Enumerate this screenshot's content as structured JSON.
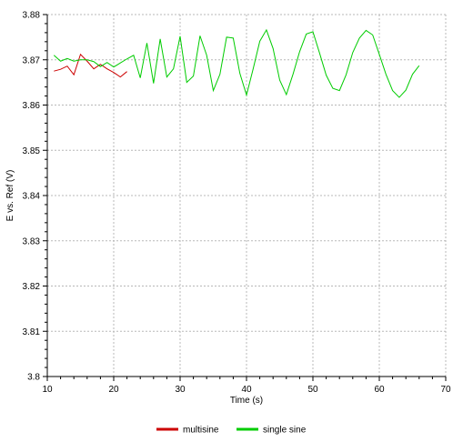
{
  "chart_data": {
    "type": "line",
    "title": "",
    "xlabel": "Time (s)",
    "ylabel": "E vs. Ref (V)",
    "xlim": [
      10,
      70
    ],
    "ylim": [
      3.8,
      3.88
    ],
    "xticks": [
      10,
      20,
      30,
      40,
      50,
      60,
      70
    ],
    "yticks": [
      3.8,
      3.81,
      3.82,
      3.83,
      3.84,
      3.85,
      3.86,
      3.87,
      3.88
    ],
    "xtick_labels": [
      "10",
      "20",
      "30",
      "40",
      "50",
      "60",
      "70"
    ],
    "ytick_labels": [
      "3.8",
      "3.81",
      "3.82",
      "3.83",
      "3.84",
      "3.85",
      "3.86",
      "3.87",
      "3.88"
    ],
    "grid": true,
    "legend_position": "bottom-center",
    "series": [
      {
        "name": "multisine",
        "color": "#cc0000",
        "x": [
          11,
          12,
          13,
          14,
          15,
          16,
          17,
          18,
          19,
          20,
          21,
          22
        ],
        "y": [
          3.8675,
          3.8679,
          3.8686,
          3.8667,
          3.8712,
          3.8697,
          3.868,
          3.869,
          3.868,
          3.8672,
          3.8662,
          3.8674
        ]
      },
      {
        "name": "single sine",
        "color": "#00cc00",
        "x": [
          11,
          12,
          13,
          14,
          15,
          16,
          17,
          18,
          19,
          20,
          21,
          22,
          23,
          24,
          25,
          26,
          27,
          28,
          29,
          30,
          31,
          32,
          33,
          34,
          35,
          36,
          37,
          38,
          39,
          40,
          41,
          42,
          43,
          44,
          45,
          46,
          47,
          48,
          49,
          50,
          51,
          52,
          53,
          54,
          55,
          56,
          57,
          58,
          59,
          60,
          61,
          62,
          63,
          64,
          65,
          66
        ],
        "y": [
          3.871,
          3.8697,
          3.8703,
          3.8697,
          3.87,
          3.87,
          3.8696,
          3.8685,
          3.8694,
          3.8684,
          3.8693,
          3.8702,
          3.871,
          3.866,
          3.8737,
          3.8648,
          3.8746,
          3.8662,
          3.868,
          3.8752,
          3.865,
          3.8664,
          3.8753,
          3.871,
          3.8632,
          3.8668,
          3.875,
          3.8748,
          3.867,
          3.8622,
          3.868,
          3.8741,
          3.8766,
          3.8725,
          3.8655,
          3.8623,
          3.8668,
          3.8718,
          3.8757,
          3.8762,
          3.8715,
          3.8666,
          3.8637,
          3.8632,
          3.8667,
          3.8716,
          3.8748,
          3.8765,
          3.8755,
          3.8712,
          3.8668,
          3.8632,
          3.8617,
          3.8633,
          3.8668,
          3.8687
        ]
      }
    ]
  }
}
